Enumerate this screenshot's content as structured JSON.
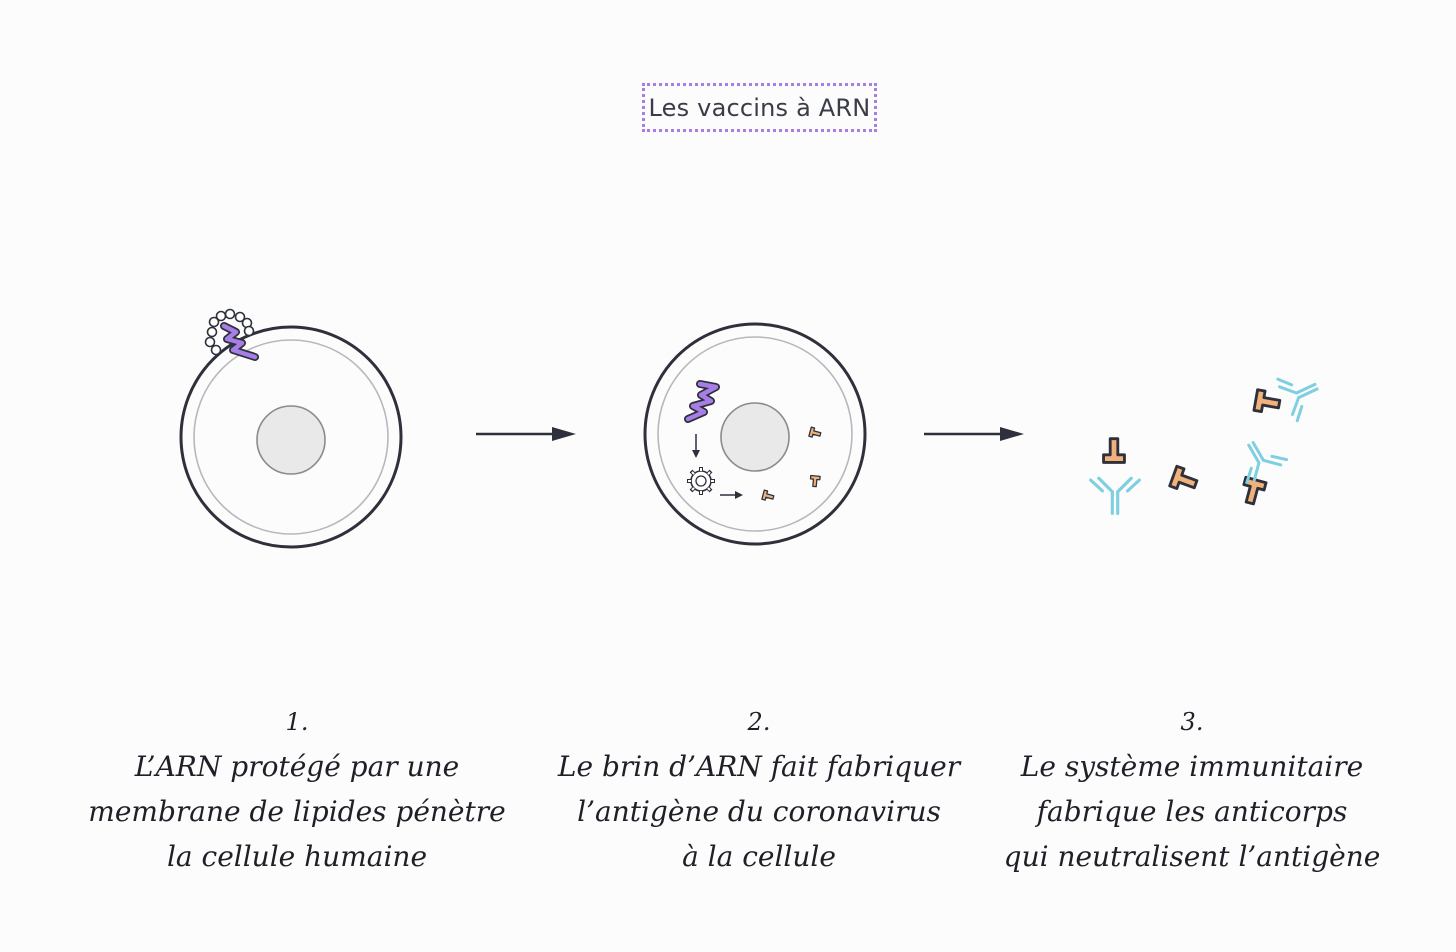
{
  "title": "Les vaccins à ARN",
  "steps": [
    {
      "number": "1.",
      "lines": [
        "L’ARN protégé par une",
        "membrane de lipides pénètre",
        "la cellule humaine"
      ]
    },
    {
      "number": "2.",
      "lines": [
        "Le brin d’ARN fait fabriquer",
        "l’antigène du coronavirus",
        "à la cellule"
      ]
    },
    {
      "number": "3.",
      "lines": [
        "Le système immunitaire",
        "fabrique les anticorps",
        "qui neutralisent l’antigène"
      ]
    }
  ],
  "colors": {
    "title_border": "#a77ee6",
    "cell_outline": "#2e303b",
    "inner_membrane": "#b8b8bc",
    "nucleus_fill": "#e9e9ea",
    "rna": "#a77ee6",
    "antigen": "#f0b27a",
    "antibody": "#7ecfe0",
    "arrow": "#2e303b"
  }
}
